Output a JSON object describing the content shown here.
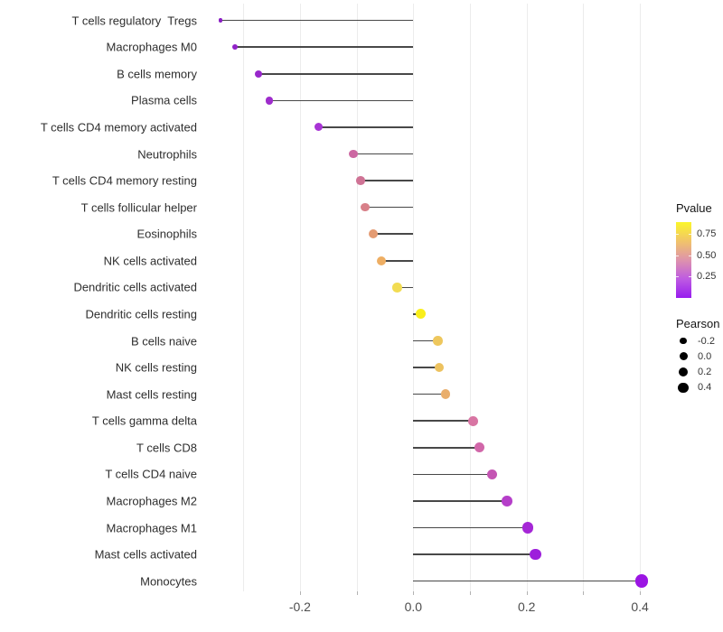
{
  "chart_data": {
    "type": "lollipop",
    "orientation": "horizontal",
    "title": "",
    "xlabel": "",
    "ylabel": "",
    "xlim": [
      -0.37,
      0.45
    ],
    "grid": true,
    "gridline_positions": [
      -0.3,
      -0.2,
      -0.1,
      0.0,
      0.1,
      0.2,
      0.3,
      0.4
    ],
    "x_tick_positions": [
      -0.2,
      -0.1,
      0.0,
      0.1,
      0.2,
      0.3,
      0.4
    ],
    "x_tick_labels": [
      {
        "value": -0.2,
        "label": "-0.2"
      },
      {
        "value": 0.0,
        "label": "0.0"
      },
      {
        "value": 0.2,
        "label": "0.2"
      },
      {
        "value": 0.4,
        "label": "0.4"
      }
    ],
    "points": [
      {
        "label": "T cells regulatory  Tregs",
        "pearson": -0.34,
        "pvalue": 0.02,
        "color": "#8a1fc4",
        "radius": 2.3
      },
      {
        "label": "Macrophages M0",
        "pearson": -0.315,
        "pvalue": 0.03,
        "color": "#9123c8",
        "radius": 3.2
      },
      {
        "label": "B cells memory",
        "pearson": -0.274,
        "pvalue": 0.05,
        "color": "#9827cb",
        "radius": 4.0
      },
      {
        "label": "Plasma cells",
        "pearson": -0.254,
        "pvalue": 0.07,
        "color": "#9e2ccc",
        "radius": 4.3
      },
      {
        "label": "T cells CD4 memory activated",
        "pearson": -0.167,
        "pvalue": 0.12,
        "color": "#a834d5",
        "radius": 4.5
      },
      {
        "label": "Neutrophils",
        "pearson": -0.106,
        "pvalue": 0.37,
        "color": "#cc68a2",
        "radius": 4.8
      },
      {
        "label": "T cells CD4 memory resting",
        "pearson": -0.093,
        "pvalue": 0.42,
        "color": "#cf7395",
        "radius": 4.8
      },
      {
        "label": "T cells follicular helper",
        "pearson": -0.085,
        "pvalue": 0.47,
        "color": "#d88089",
        "radius": 4.8
      },
      {
        "label": "Eosinophils",
        "pearson": -0.071,
        "pvalue": 0.56,
        "color": "#e49b72",
        "radius": 5.0
      },
      {
        "label": "NK cells activated",
        "pearson": -0.056,
        "pvalue": 0.63,
        "color": "#eeae63",
        "radius": 5.0
      },
      {
        "label": "Dendritic cells activated",
        "pearson": -0.028,
        "pvalue": 0.8,
        "color": "#f2dc52",
        "radius": 5.3
      },
      {
        "label": "Dendritic cells resting",
        "pearson": 0.013,
        "pvalue": 0.89,
        "color": "#f9ee1b",
        "radius": 5.5
      },
      {
        "label": "B cells naive",
        "pearson": 0.043,
        "pvalue": 0.71,
        "color": "#eec75d",
        "radius": 5.3
      },
      {
        "label": "NK cells resting",
        "pearson": 0.046,
        "pvalue": 0.7,
        "color": "#edc25f",
        "radius": 5.3
      },
      {
        "label": "Mast cells resting",
        "pearson": 0.057,
        "pvalue": 0.63,
        "color": "#e9ae6c",
        "radius": 5.4
      },
      {
        "label": "T cells gamma delta",
        "pearson": 0.106,
        "pvalue": 0.39,
        "color": "#d875a3",
        "radius": 5.4
      },
      {
        "label": "T cells CD8",
        "pearson": 0.116,
        "pvalue": 0.36,
        "color": "#d167a9",
        "radius": 5.5
      },
      {
        "label": "T cells CD4 naive",
        "pearson": 0.139,
        "pvalue": 0.29,
        "color": "#c455b3",
        "radius": 5.7
      },
      {
        "label": "Macrophages M2",
        "pearson": 0.165,
        "pvalue": 0.21,
        "color": "#b53ec9",
        "radius": 5.9
      },
      {
        "label": "Macrophages M1",
        "pearson": 0.202,
        "pvalue": 0.13,
        "color": "#a527d6",
        "radius": 6.3
      },
      {
        "label": "Mast cells activated",
        "pearson": 0.215,
        "pvalue": 0.09,
        "color": "#9d1fdb",
        "radius": 6.4
      },
      {
        "label": "Monocytes",
        "pearson": 0.403,
        "pvalue": 0.01,
        "color": "#9b15e3",
        "radius": 7.2
      }
    ],
    "legend": {
      "position": "right",
      "pvalue": {
        "title": "Pvalue",
        "ticks": [
          {
            "label": "0.75",
            "offset": 13
          },
          {
            "label": "0.50",
            "offset": 37
          },
          {
            "label": "0.25",
            "offset": 60
          }
        ],
        "gradient_top_to_bottom": [
          "#fbf62b",
          "#f1c469",
          "#de93ac",
          "#be5be2",
          "#981cee"
        ]
      },
      "pearson": {
        "title": "Pearson",
        "sizes": [
          {
            "label": "-0.2",
            "radius": 3.7
          },
          {
            "label": "0.0",
            "radius": 4.5
          },
          {
            "label": "0.2",
            "radius": 5.2
          },
          {
            "label": "0.4",
            "radius": 5.7
          }
        ]
      }
    }
  }
}
